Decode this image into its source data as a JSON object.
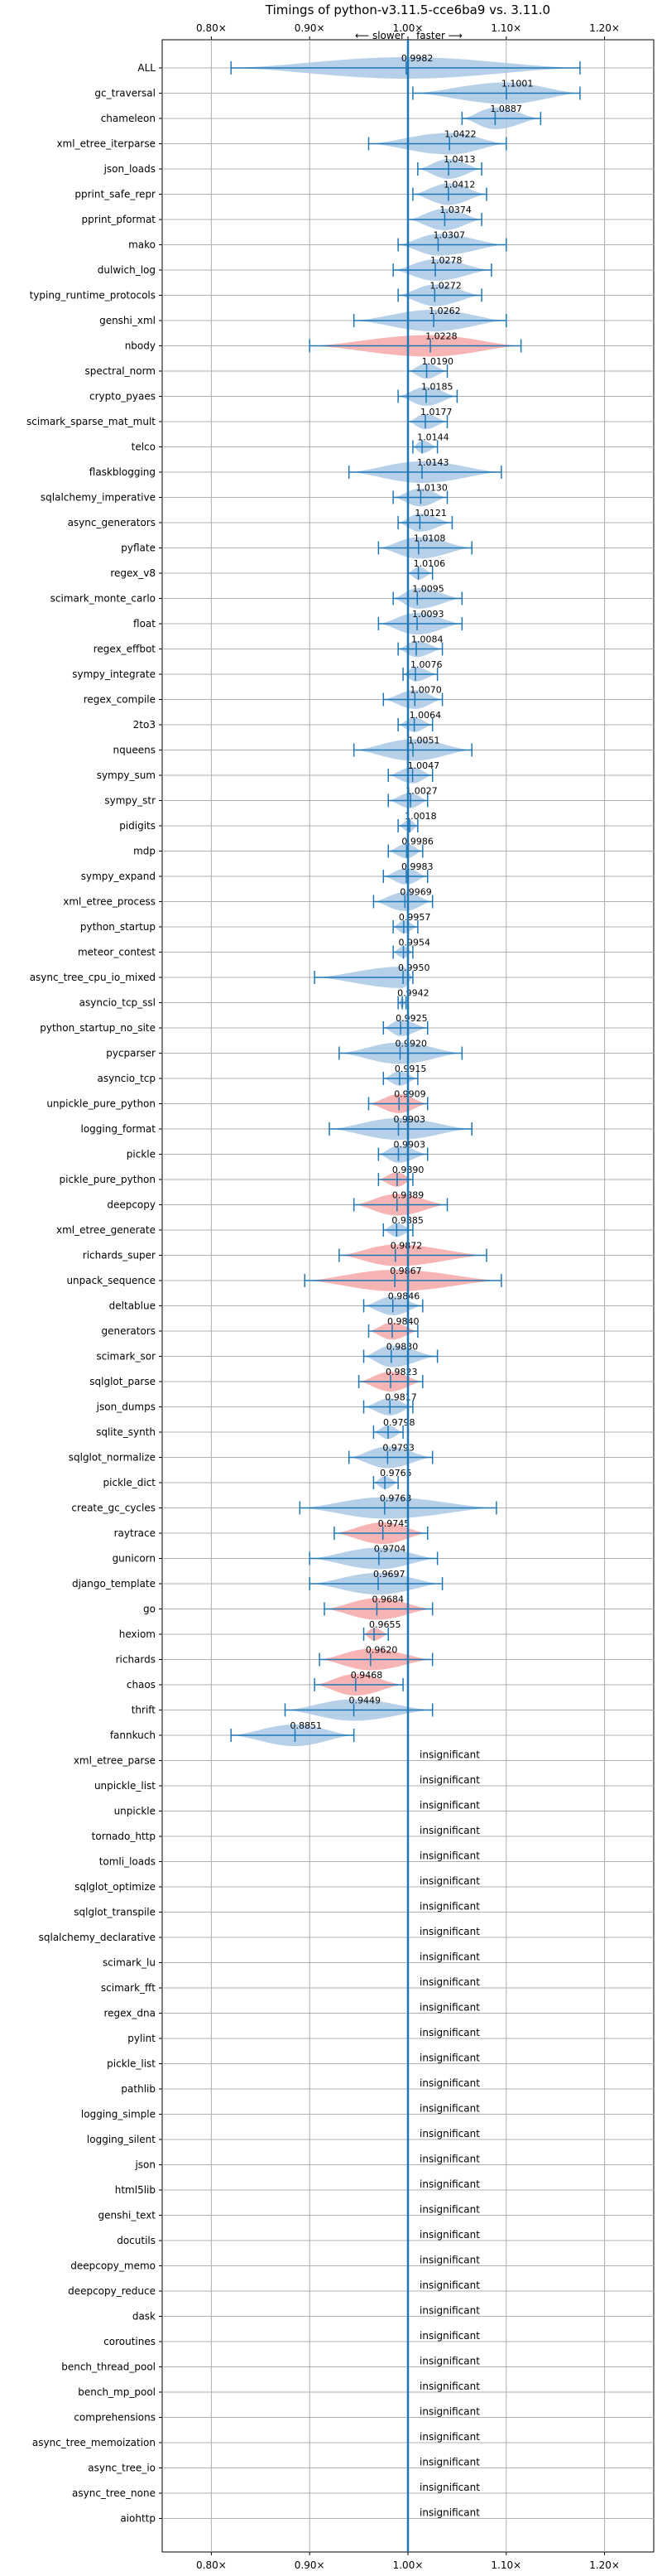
{
  "chart_data": {
    "type": "violin",
    "title": "Timings of python-v3.11.5-cce6ba9 vs. 3.11.0",
    "direction_slower": "⟵ slower",
    "direction_faster": "faster ⟶",
    "xlim": [
      0.75,
      1.25
    ],
    "xticks": [
      0.8,
      0.9,
      1.0,
      1.1,
      1.2
    ],
    "xtick_labels": [
      "0.80×",
      "0.90×",
      "1.00×",
      "1.10×",
      "1.20×"
    ],
    "grid": true,
    "insignificant_label": "insignificant",
    "benchmarks": [
      {
        "name": "ALL",
        "value": 0.9982,
        "min": 0.82,
        "max": 1.175,
        "color": "blue",
        "label": "0.9982"
      },
      {
        "name": "gc_traversal",
        "value": 1.1001,
        "min": 1.005,
        "max": 1.175,
        "color": "blue",
        "label": "1.1001"
      },
      {
        "name": "chameleon",
        "value": 1.0887,
        "min": 1.055,
        "max": 1.135,
        "color": "blue",
        "label": "1.0887"
      },
      {
        "name": "xml_etree_iterparse",
        "value": 1.0422,
        "min": 0.96,
        "max": 1.1,
        "color": "blue",
        "label": "1.0422"
      },
      {
        "name": "json_loads",
        "value": 1.0413,
        "min": 1.01,
        "max": 1.075,
        "color": "blue",
        "label": "1.0413"
      },
      {
        "name": "pprint_safe_repr",
        "value": 1.0412,
        "min": 1.005,
        "max": 1.08,
        "color": "blue",
        "label": "1.0412"
      },
      {
        "name": "pprint_pformat",
        "value": 1.0374,
        "min": 1.0,
        "max": 1.075,
        "color": "blue",
        "label": "1.0374"
      },
      {
        "name": "mako",
        "value": 1.0307,
        "min": 0.99,
        "max": 1.1,
        "color": "blue",
        "label": "1.0307"
      },
      {
        "name": "dulwich_log",
        "value": 1.0278,
        "min": 0.985,
        "max": 1.085,
        "color": "blue",
        "label": "1.0278"
      },
      {
        "name": "typing_runtime_protocols",
        "value": 1.0272,
        "min": 0.99,
        "max": 1.075,
        "color": "blue",
        "label": "1.0272"
      },
      {
        "name": "genshi_xml",
        "value": 1.0262,
        "min": 0.945,
        "max": 1.1,
        "color": "blue",
        "label": "1.0262"
      },
      {
        "name": "nbody",
        "value": 1.0228,
        "min": 0.9,
        "max": 1.115,
        "color": "red",
        "label": "1.0228"
      },
      {
        "name": "spectral_norm",
        "value": 1.019,
        "min": 1.0,
        "max": 1.04,
        "color": "blue",
        "label": "1.0190"
      },
      {
        "name": "crypto_pyaes",
        "value": 1.0185,
        "min": 0.99,
        "max": 1.05,
        "color": "blue",
        "label": "1.0185"
      },
      {
        "name": "scimark_sparse_mat_mult",
        "value": 1.0177,
        "min": 1.0,
        "max": 1.04,
        "color": "blue",
        "label": "1.0177"
      },
      {
        "name": "telco",
        "value": 1.0144,
        "min": 1.005,
        "max": 1.03,
        "color": "blue",
        "label": "1.0144"
      },
      {
        "name": "flaskblogging",
        "value": 1.0143,
        "min": 0.94,
        "max": 1.095,
        "color": "blue",
        "label": "1.0143"
      },
      {
        "name": "sqlalchemy_imperative",
        "value": 1.013,
        "min": 0.985,
        "max": 1.04,
        "color": "blue",
        "label": "1.0130"
      },
      {
        "name": "async_generators",
        "value": 1.0121,
        "min": 0.99,
        "max": 1.045,
        "color": "blue",
        "label": "1.0121"
      },
      {
        "name": "pyflate",
        "value": 1.0108,
        "min": 0.97,
        "max": 1.065,
        "color": "blue",
        "label": "1.0108"
      },
      {
        "name": "regex_v8",
        "value": 1.0106,
        "min": 1.0,
        "max": 1.025,
        "color": "blue",
        "label": "1.0106"
      },
      {
        "name": "scimark_monte_carlo",
        "value": 1.0095,
        "min": 0.985,
        "max": 1.055,
        "color": "blue",
        "label": "1.0095"
      },
      {
        "name": "float",
        "value": 1.0093,
        "min": 0.97,
        "max": 1.055,
        "color": "blue",
        "label": "1.0093"
      },
      {
        "name": "regex_effbot",
        "value": 1.0084,
        "min": 0.99,
        "max": 1.035,
        "color": "blue",
        "label": "1.0084"
      },
      {
        "name": "sympy_integrate",
        "value": 1.0076,
        "min": 0.995,
        "max": 1.03,
        "color": "blue",
        "label": "1.0076"
      },
      {
        "name": "regex_compile",
        "value": 1.007,
        "min": 0.975,
        "max": 1.035,
        "color": "blue",
        "label": "1.0070"
      },
      {
        "name": "2to3",
        "value": 1.0064,
        "min": 0.99,
        "max": 1.025,
        "color": "blue",
        "label": "1.0064"
      },
      {
        "name": "nqueens",
        "value": 1.0051,
        "min": 0.945,
        "max": 1.065,
        "color": "blue",
        "label": "1.0051"
      },
      {
        "name": "sympy_sum",
        "value": 1.0047,
        "min": 0.98,
        "max": 1.025,
        "color": "blue",
        "label": "1.0047"
      },
      {
        "name": "sympy_str",
        "value": 1.0027,
        "min": 0.98,
        "max": 1.02,
        "color": "blue",
        "label": "1.0027"
      },
      {
        "name": "pidigits",
        "value": 1.0018,
        "min": 0.99,
        "max": 1.01,
        "color": "blue",
        "label": "1.0018"
      },
      {
        "name": "mdp",
        "value": 0.9986,
        "min": 0.98,
        "max": 1.015,
        "color": "blue",
        "label": "0.9986"
      },
      {
        "name": "sympy_expand",
        "value": 0.9983,
        "min": 0.975,
        "max": 1.02,
        "color": "blue",
        "label": "0.9983"
      },
      {
        "name": "xml_etree_process",
        "value": 0.9969,
        "min": 0.965,
        "max": 1.025,
        "color": "blue",
        "label": "0.9969"
      },
      {
        "name": "python_startup",
        "value": 0.9957,
        "min": 0.985,
        "max": 1.01,
        "color": "blue",
        "label": "0.9957"
      },
      {
        "name": "meteor_contest",
        "value": 0.9954,
        "min": 0.985,
        "max": 1.005,
        "color": "blue",
        "label": "0.9954"
      },
      {
        "name": "async_tree_cpu_io_mixed",
        "value": 0.995,
        "min": 0.905,
        "max": 1.005,
        "color": "blue",
        "label": "0.9950"
      },
      {
        "name": "asyncio_tcp_ssl",
        "value": 0.9942,
        "min": 0.99,
        "max": 0.998,
        "color": "blue",
        "label": "0.9942"
      },
      {
        "name": "python_startup_no_site",
        "value": 0.9925,
        "min": 0.975,
        "max": 1.02,
        "color": "blue",
        "label": "0.9925"
      },
      {
        "name": "pycparser",
        "value": 0.992,
        "min": 0.93,
        "max": 1.055,
        "color": "blue",
        "label": "0.9920"
      },
      {
        "name": "asyncio_tcp",
        "value": 0.9915,
        "min": 0.975,
        "max": 1.01,
        "color": "blue",
        "label": "0.9915"
      },
      {
        "name": "unpickle_pure_python",
        "value": 0.9909,
        "min": 0.96,
        "max": 1.02,
        "color": "red",
        "label": "0.9909"
      },
      {
        "name": "logging_format",
        "value": 0.9903,
        "min": 0.92,
        "max": 1.065,
        "color": "blue",
        "label": "0.9903"
      },
      {
        "name": "pickle",
        "value": 0.9903,
        "min": 0.97,
        "max": 1.02,
        "color": "blue",
        "label": "0.9903"
      },
      {
        "name": "pickle_pure_python",
        "value": 0.989,
        "min": 0.97,
        "max": 1.005,
        "color": "red",
        "label": "0.9890"
      },
      {
        "name": "deepcopy",
        "value": 0.9889,
        "min": 0.945,
        "max": 1.04,
        "color": "red",
        "label": "0.9889"
      },
      {
        "name": "xml_etree_generate",
        "value": 0.9885,
        "min": 0.975,
        "max": 1.005,
        "color": "blue",
        "label": "0.9885"
      },
      {
        "name": "richards_super",
        "value": 0.9872,
        "min": 0.93,
        "max": 1.08,
        "color": "red",
        "label": "0.9872"
      },
      {
        "name": "unpack_sequence",
        "value": 0.9867,
        "min": 0.895,
        "max": 1.095,
        "color": "red",
        "label": "0.9867"
      },
      {
        "name": "deltablue",
        "value": 0.9846,
        "min": 0.955,
        "max": 1.015,
        "color": "blue",
        "label": "0.9846"
      },
      {
        "name": "generators",
        "value": 0.984,
        "min": 0.96,
        "max": 1.01,
        "color": "red",
        "label": "0.9840"
      },
      {
        "name": "scimark_sor",
        "value": 0.983,
        "min": 0.955,
        "max": 1.03,
        "color": "blue",
        "label": "0.9830"
      },
      {
        "name": "sqlglot_parse",
        "value": 0.9823,
        "min": 0.95,
        "max": 1.015,
        "color": "red",
        "label": "0.9823"
      },
      {
        "name": "json_dumps",
        "value": 0.9817,
        "min": 0.955,
        "max": 1.005,
        "color": "blue",
        "label": "0.9817"
      },
      {
        "name": "sqlite_synth",
        "value": 0.9798,
        "min": 0.965,
        "max": 0.995,
        "color": "blue",
        "label": "0.9798"
      },
      {
        "name": "sqlglot_normalize",
        "value": 0.9793,
        "min": 0.94,
        "max": 1.025,
        "color": "blue",
        "label": "0.9793"
      },
      {
        "name": "pickle_dict",
        "value": 0.9765,
        "min": 0.965,
        "max": 0.99,
        "color": "blue",
        "label": "0.9765"
      },
      {
        "name": "create_gc_cycles",
        "value": 0.9763,
        "min": 0.89,
        "max": 1.09,
        "color": "blue",
        "label": "0.9763"
      },
      {
        "name": "raytrace",
        "value": 0.9745,
        "min": 0.925,
        "max": 1.02,
        "color": "red",
        "label": "0.9745"
      },
      {
        "name": "gunicorn",
        "value": 0.9704,
        "min": 0.9,
        "max": 1.03,
        "color": "blue",
        "label": "0.9704"
      },
      {
        "name": "django_template",
        "value": 0.9697,
        "min": 0.9,
        "max": 1.035,
        "color": "blue",
        "label": "0.9697"
      },
      {
        "name": "go",
        "value": 0.9684,
        "min": 0.915,
        "max": 1.025,
        "color": "red",
        "label": "0.9684"
      },
      {
        "name": "hexiom",
        "value": 0.9655,
        "min": 0.955,
        "max": 0.98,
        "color": "red",
        "label": "0.9655"
      },
      {
        "name": "richards",
        "value": 0.962,
        "min": 0.91,
        "max": 1.025,
        "color": "red",
        "label": "0.9620"
      },
      {
        "name": "chaos",
        "value": 0.9468,
        "min": 0.905,
        "max": 0.995,
        "color": "red",
        "label": "0.9468"
      },
      {
        "name": "thrift",
        "value": 0.9449,
        "min": 0.875,
        "max": 1.025,
        "color": "blue",
        "label": "0.9449"
      },
      {
        "name": "fannkuch",
        "value": 0.8851,
        "min": 0.82,
        "max": 0.945,
        "color": "blue",
        "label": "0.8851"
      },
      {
        "name": "xml_etree_parse",
        "insignificant": true
      },
      {
        "name": "unpickle_list",
        "insignificant": true
      },
      {
        "name": "unpickle",
        "insignificant": true
      },
      {
        "name": "tornado_http",
        "insignificant": true
      },
      {
        "name": "tomli_loads",
        "insignificant": true
      },
      {
        "name": "sqlglot_optimize",
        "insignificant": true
      },
      {
        "name": "sqlglot_transpile",
        "insignificant": true
      },
      {
        "name": "sqlalchemy_declarative",
        "insignificant": true
      },
      {
        "name": "scimark_lu",
        "insignificant": true
      },
      {
        "name": "scimark_fft",
        "insignificant": true
      },
      {
        "name": "regex_dna",
        "insignificant": true
      },
      {
        "name": "pylint",
        "insignificant": true
      },
      {
        "name": "pickle_list",
        "insignificant": true
      },
      {
        "name": "pathlib",
        "insignificant": true
      },
      {
        "name": "logging_simple",
        "insignificant": true
      },
      {
        "name": "logging_silent",
        "insignificant": true
      },
      {
        "name": "json",
        "insignificant": true
      },
      {
        "name": "html5lib",
        "insignificant": true
      },
      {
        "name": "genshi_text",
        "insignificant": true
      },
      {
        "name": "docutils",
        "insignificant": true
      },
      {
        "name": "deepcopy_memo",
        "insignificant": true
      },
      {
        "name": "deepcopy_reduce",
        "insignificant": true
      },
      {
        "name": "dask",
        "insignificant": true
      },
      {
        "name": "coroutines",
        "insignificant": true
      },
      {
        "name": "bench_thread_pool",
        "insignificant": true
      },
      {
        "name": "bench_mp_pool",
        "insignificant": true
      },
      {
        "name": "comprehensions",
        "insignificant": true
      },
      {
        "name": "async_tree_memoization",
        "insignificant": true
      },
      {
        "name": "async_tree_io",
        "insignificant": true
      },
      {
        "name": "async_tree_none",
        "insignificant": true
      },
      {
        "name": "aiohttp",
        "insignificant": true
      }
    ]
  },
  "colors": {
    "blue_fill": "#a9c8e6",
    "red_fill": "#f4a7a8",
    "stroke": "#1f77b4",
    "grid": "#b0b0b0"
  }
}
